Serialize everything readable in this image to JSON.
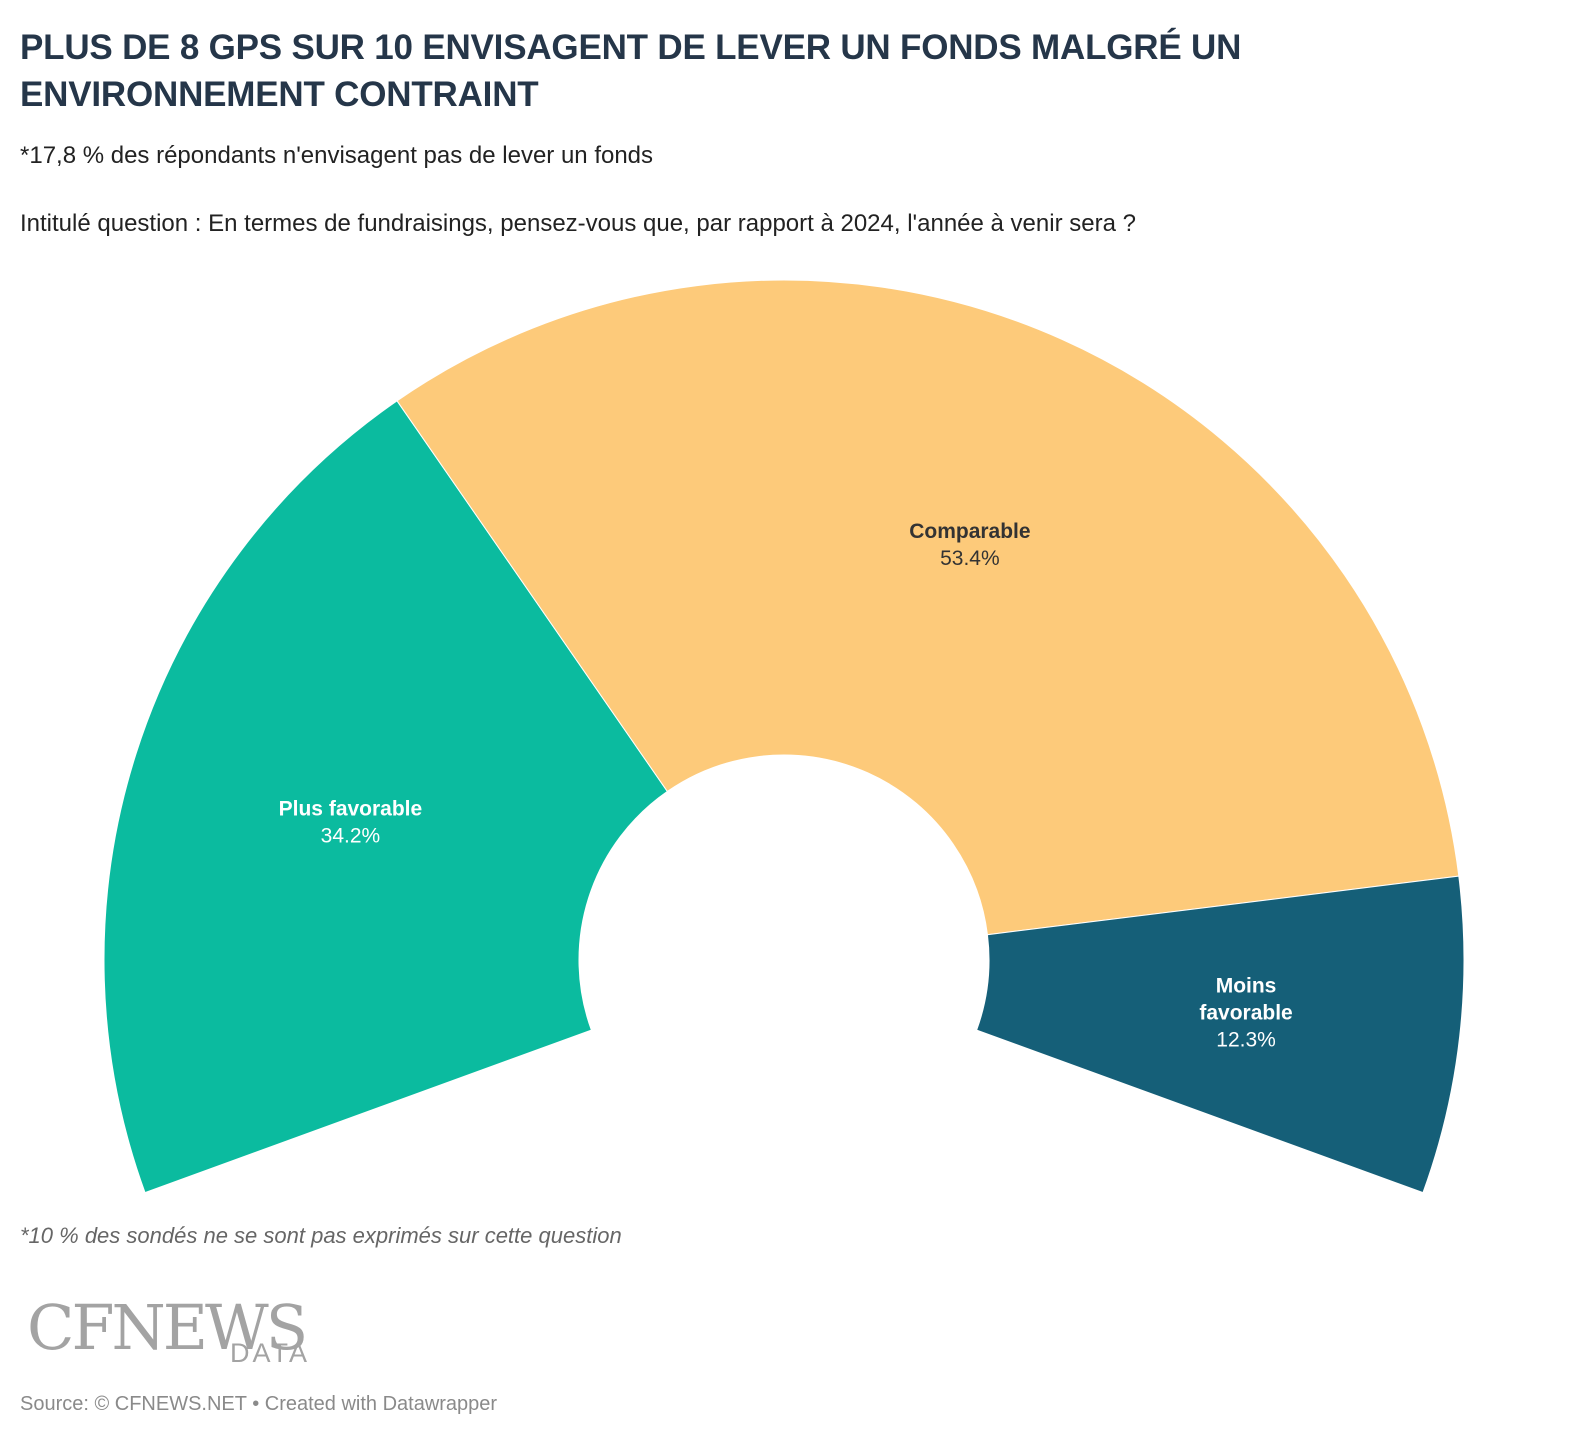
{
  "header": {
    "title": "PLUS DE 8 GPS SUR 10 ENVISAGENT DE LEVER UN FONDS MALGRÉ UN ENVIRONNEMENT CONTRAINT",
    "subtitle_line1": "*17,8 % des répondants n'envisagent pas de lever un fonds",
    "subtitle_line2": "Intitulé question : En termes de fundraisings, pensez-vous que, par rapport à 2024, l'année à venir sera ?"
  },
  "chart_data": {
    "type": "pie",
    "variant": "semi-donut",
    "arc_degrees": 220,
    "slices": [
      {
        "label": "Plus favorable",
        "value": 34.2,
        "value_label": "34.2%",
        "color": "#0bbb9f",
        "text_color": "#ffffff"
      },
      {
        "label": "Comparable",
        "value": 53.4,
        "value_label": "53.4%",
        "color": "#fdca7a",
        "text_color": "#333333"
      },
      {
        "label": "Moins favorable",
        "value": 12.3,
        "value_label": "12.3%",
        "color": "#155f78",
        "text_color": "#ffffff"
      }
    ]
  },
  "footer": {
    "note": "*10 % des sondés ne se sont pas exprimés sur cette question",
    "logo_main": "CFNEWS",
    "logo_sub": "DATA",
    "source": "Source: © CFNEWS.NET • Created with Datawrapper"
  }
}
